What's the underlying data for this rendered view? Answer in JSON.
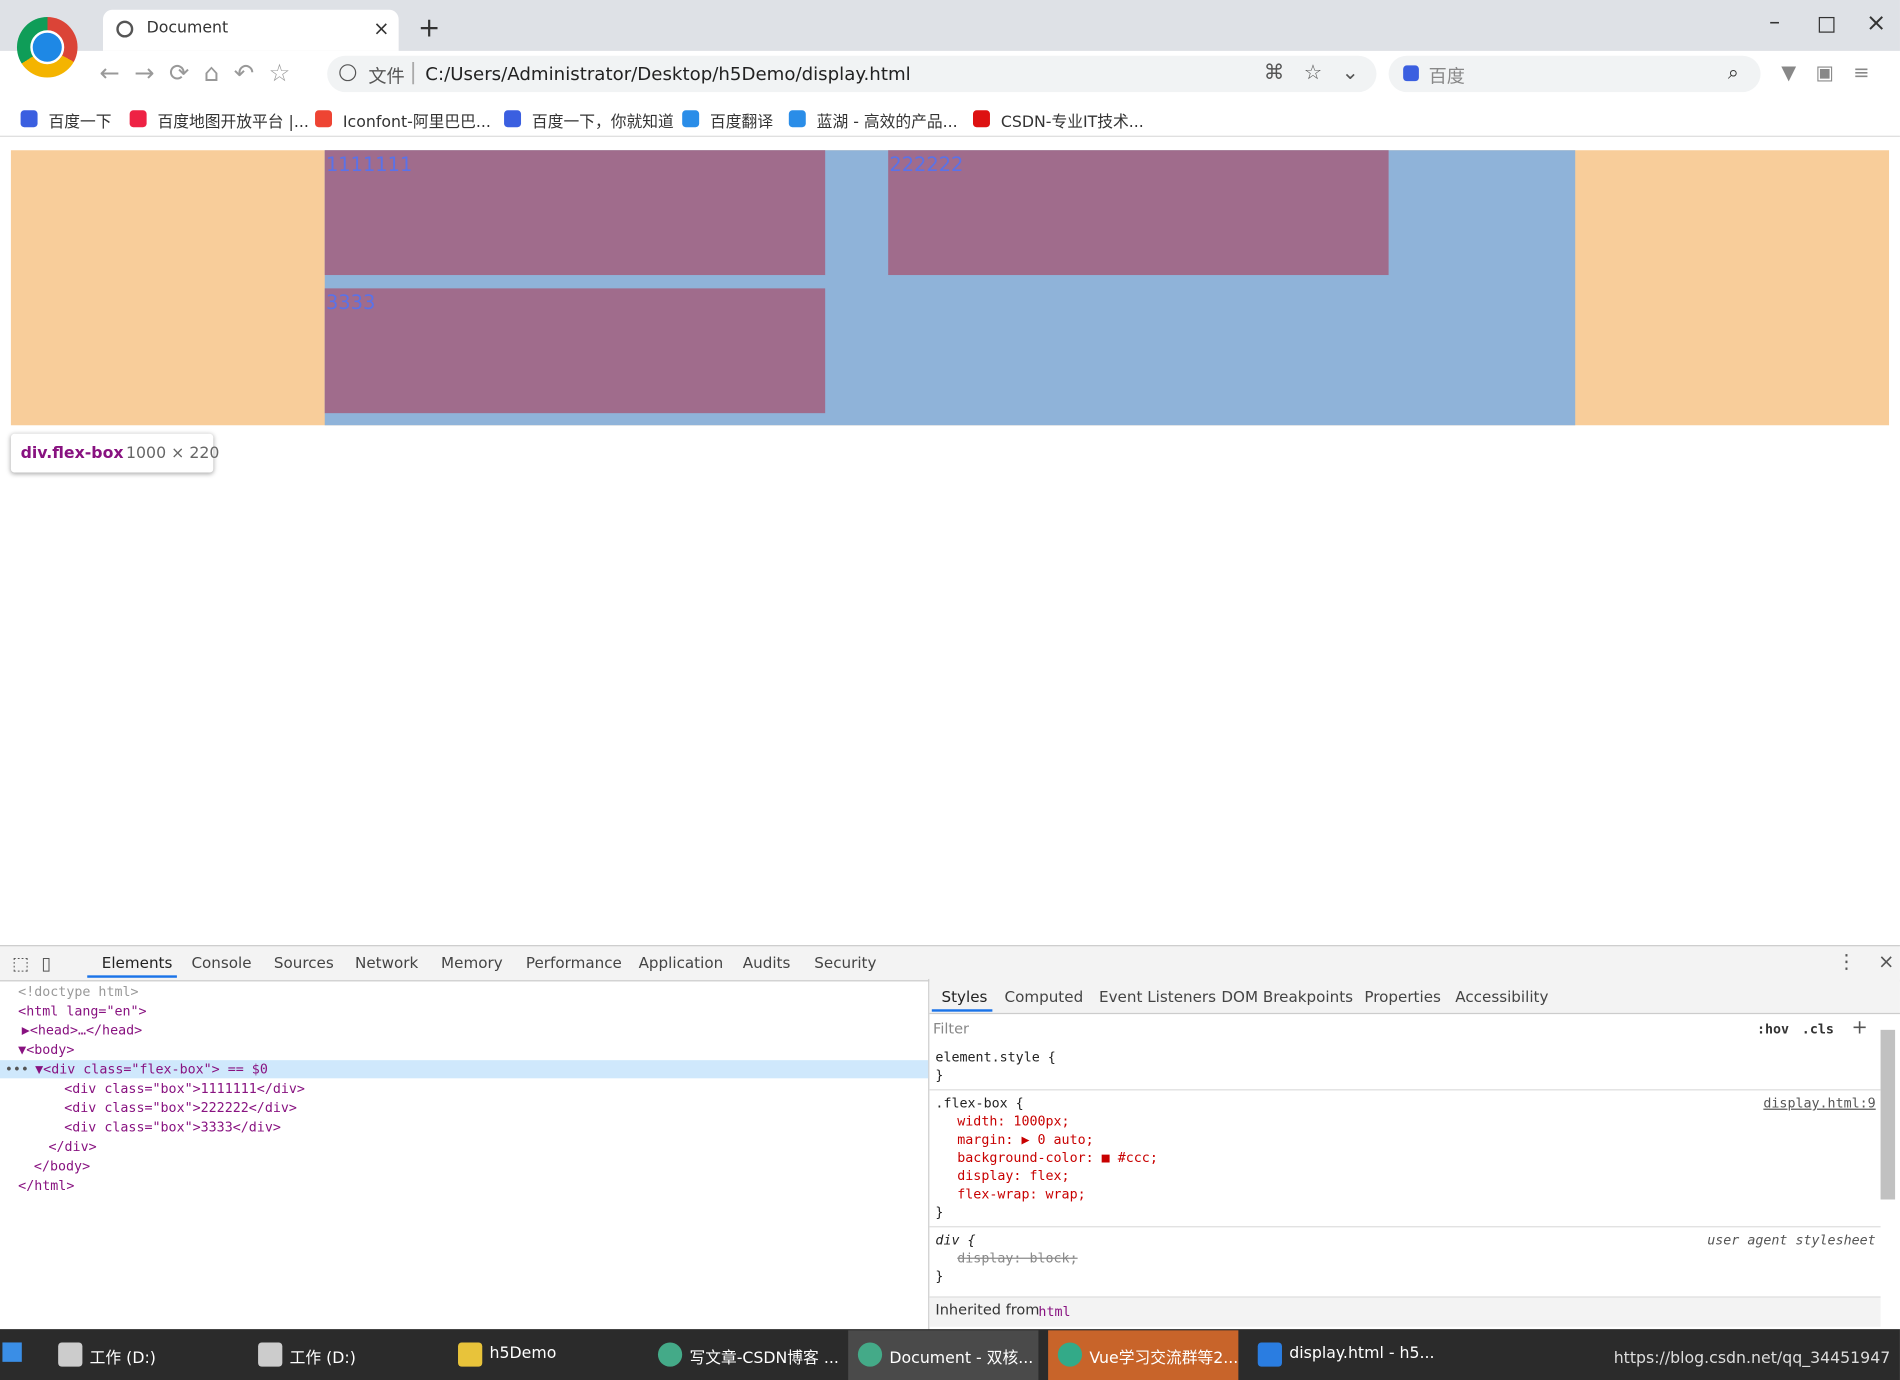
{
  "browser": {
    "tab_title": "Document",
    "address_prefix": "文件",
    "address": "C:/Users/Administrator/Desktop/h5Demo/display.html",
    "search_placeholder": "百度",
    "bookmarks": [
      "百度一下",
      "百度地图开放平台 |...",
      "Iconfont-阿里巴巴...",
      "百度一下，你就知道",
      "百度翻译",
      "蓝湖 - 高效的产品...",
      "CSDN-专业IT技术..."
    ]
  },
  "page": {
    "boxes": [
      "1111111",
      "222222",
      "3333"
    ],
    "tooltip": {
      "selector": "div.flex-box",
      "size": "1000 × 220"
    }
  },
  "devtools": {
    "tabs": [
      "Elements",
      "Console",
      "Sources",
      "Network",
      "Memory",
      "Performance",
      "Application",
      "Audits",
      "Security"
    ],
    "elements_tree": [
      "<!doctype html>",
      "<html lang=\"en\">",
      "▶<head>…</head>",
      "▼<body>",
      "▼<div class=\"flex-box\"> == $0",
      "<div class=\"box\">1111111</div>",
      "<div class=\"box\">222222</div>",
      "<div class=\"box\">3333</div>",
      "</div>",
      "</body>",
      "</html>"
    ],
    "styles_tabs": [
      "Styles",
      "Computed",
      "Event Listeners",
      "DOM Breakpoints",
      "Properties",
      "Accessibility"
    ],
    "filter_placeholder": "Filter",
    "filter_buttons": [
      ":hov",
      ".cls"
    ],
    "rules": [
      {
        "selector": "element.style {",
        "close": "}"
      },
      {
        "selector": ".flex-box {",
        "source": "display.html:9",
        "declarations": [
          "width: 1000px;",
          "margin: ▶ 0 auto;",
          "background-color: ■ #ccc;",
          "display: flex;",
          "flex-wrap: wrap;"
        ],
        "close": "}"
      },
      {
        "selector": "div {",
        "source": "user agent stylesheet",
        "declarations": [
          "display: block;"
        ],
        "overridden": true,
        "close": "}"
      }
    ],
    "inherited": {
      "label": "Inherited from",
      "element": "html"
    }
  },
  "taskbar": {
    "items": [
      "工作 (D:)",
      "工作 (D:)",
      "h5Demo",
      "写文章-CSDN博客 ...",
      "Document - 双核...",
      "Vue学习交流群等2...",
      "display.html - h5..."
    ],
    "watermark": "https://blog.csdn.net/qq_34451947"
  }
}
